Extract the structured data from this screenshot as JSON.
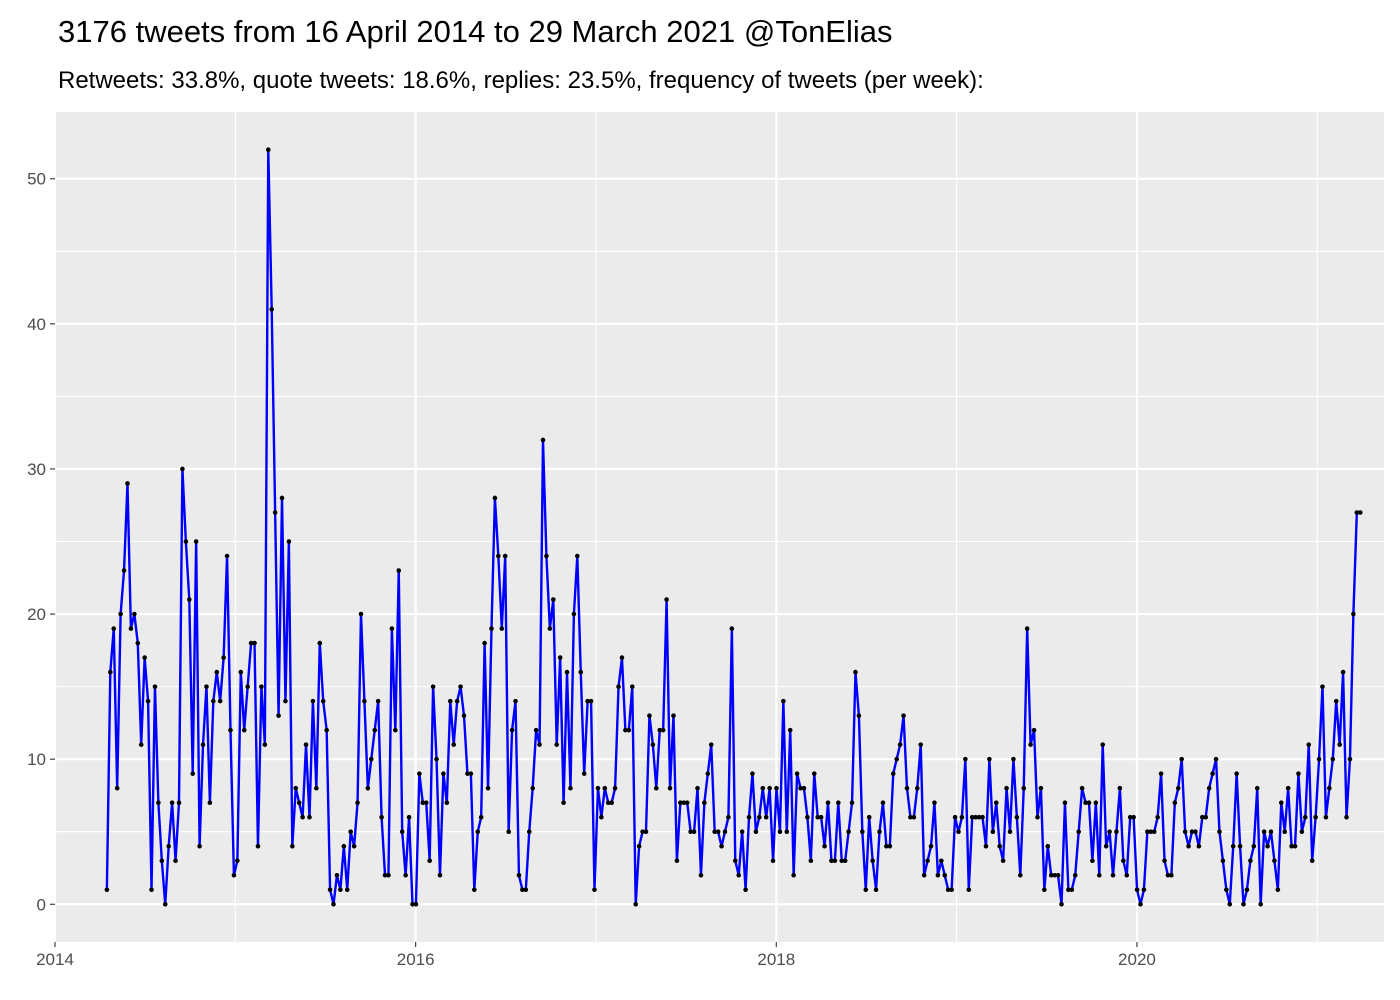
{
  "chart_data": {
    "type": "line",
    "title": "3176 tweets from 16 April 2014 to 29 March 2021 @TonElias",
    "subtitle": "Retweets: 33.8%, quote tweets: 18.6%, replies: 23.5%, frequency of tweets (per week):",
    "xlabel": "",
    "ylabel": "",
    "x_start": "2014-04-16",
    "x_end": "2021-03-29",
    "xlim": [
      2014.0,
      2021.37
    ],
    "ylim": [
      -2.6,
      54.6
    ],
    "x_ticks": [
      {
        "value": 2014,
        "label": "2014"
      },
      {
        "value": 2016,
        "label": "2016"
      },
      {
        "value": 2018,
        "label": "2018"
      },
      {
        "value": 2020,
        "label": "2020"
      }
    ],
    "y_ticks": [
      {
        "value": 0,
        "label": "0"
      },
      {
        "value": 10,
        "label": "10"
      },
      {
        "value": 20,
        "label": "20"
      },
      {
        "value": 30,
        "label": "30"
      },
      {
        "value": 40,
        "label": "40"
      },
      {
        "value": 50,
        "label": "50"
      }
    ],
    "grid": true,
    "colors": {
      "line": "#0000ff",
      "point": "#000000",
      "panel": "#ebebeb",
      "grid": "#ffffff"
    },
    "series": [
      {
        "values": [
          1,
          16,
          19,
          8,
          20,
          23,
          29,
          19,
          20,
          18,
          11,
          17,
          14,
          1,
          15,
          7,
          3,
          0,
          4,
          7,
          3,
          7,
          30,
          25,
          21,
          9,
          25,
          4,
          11,
          15,
          7,
          14,
          16,
          14,
          17,
          24,
          12,
          2,
          3,
          16,
          12,
          15,
          18,
          18,
          4,
          15,
          11,
          52,
          41,
          27,
          13,
          28,
          14,
          25,
          4,
          8,
          7,
          6,
          11,
          6,
          14,
          8,
          18,
          14,
          12,
          1,
          0,
          2,
          1,
          4,
          1,
          5,
          4,
          7,
          20,
          14,
          8,
          10,
          12,
          14,
          6,
          2,
          2,
          19,
          12,
          23,
          5,
          2,
          6,
          0,
          0,
          9,
          7,
          7,
          3,
          15,
          10,
          2,
          9,
          7,
          14,
          11,
          14,
          15,
          13,
          9,
          9,
          1,
          5,
          6,
          18,
          8,
          19,
          28,
          24,
          19,
          24,
          5,
          12,
          14,
          2,
          1,
          1,
          5,
          8,
          12,
          11,
          32,
          24,
          19,
          21,
          11,
          17,
          7,
          16,
          8,
          20,
          24,
          16,
          9,
          14,
          14,
          1,
          8,
          6,
          8,
          7,
          7,
          8,
          15,
          17,
          12,
          12,
          15,
          0,
          4,
          5,
          5,
          13,
          11,
          8,
          12,
          12,
          21,
          8,
          13,
          3,
          7,
          7,
          7,
          5,
          5,
          8,
          2,
          7,
          9,
          11,
          5,
          5,
          4,
          5,
          6,
          19,
          3,
          2,
          5,
          1,
          6,
          9,
          5,
          6,
          8,
          6,
          8,
          3,
          8,
          5,
          14,
          5,
          12,
          2,
          9,
          8,
          8,
          6,
          3,
          9,
          6,
          6,
          4,
          7,
          3,
          3,
          7,
          3,
          3,
          5,
          7,
          16,
          13,
          5,
          1,
          6,
          3,
          1,
          5,
          7,
          4,
          4,
          9,
          10,
          11,
          13,
          8,
          6,
          6,
          8,
          11,
          2,
          3,
          4,
          7,
          2,
          3,
          2,
          1,
          1,
          6,
          5,
          6,
          10,
          1,
          6,
          6,
          6,
          6,
          4,
          10,
          5,
          7,
          4,
          3,
          8,
          5,
          10,
          6,
          2,
          8,
          19,
          11,
          12,
          6,
          8,
          1,
          4,
          2,
          2,
          2,
          0,
          7,
          1,
          1,
          2,
          5,
          8,
          7,
          7,
          3,
          7,
          2,
          11,
          4,
          5,
          2,
          5,
          8,
          3,
          2,
          6,
          6,
          1,
          0,
          1,
          5,
          5,
          5,
          6,
          9,
          3,
          2,
          2,
          7,
          8,
          10,
          5,
          4,
          5,
          5,
          4,
          6,
          6,
          8,
          9,
          10,
          5,
          3,
          1,
          0,
          4,
          9,
          4,
          0,
          1,
          3,
          4,
          8,
          0,
          5,
          4,
          5,
          3,
          1,
          7,
          5,
          8,
          4,
          4,
          9,
          5,
          6,
          11,
          3,
          6,
          10,
          15,
          6,
          8,
          10,
          14,
          11,
          16,
          6,
          10,
          20,
          27,
          27
        ]
      }
    ]
  }
}
